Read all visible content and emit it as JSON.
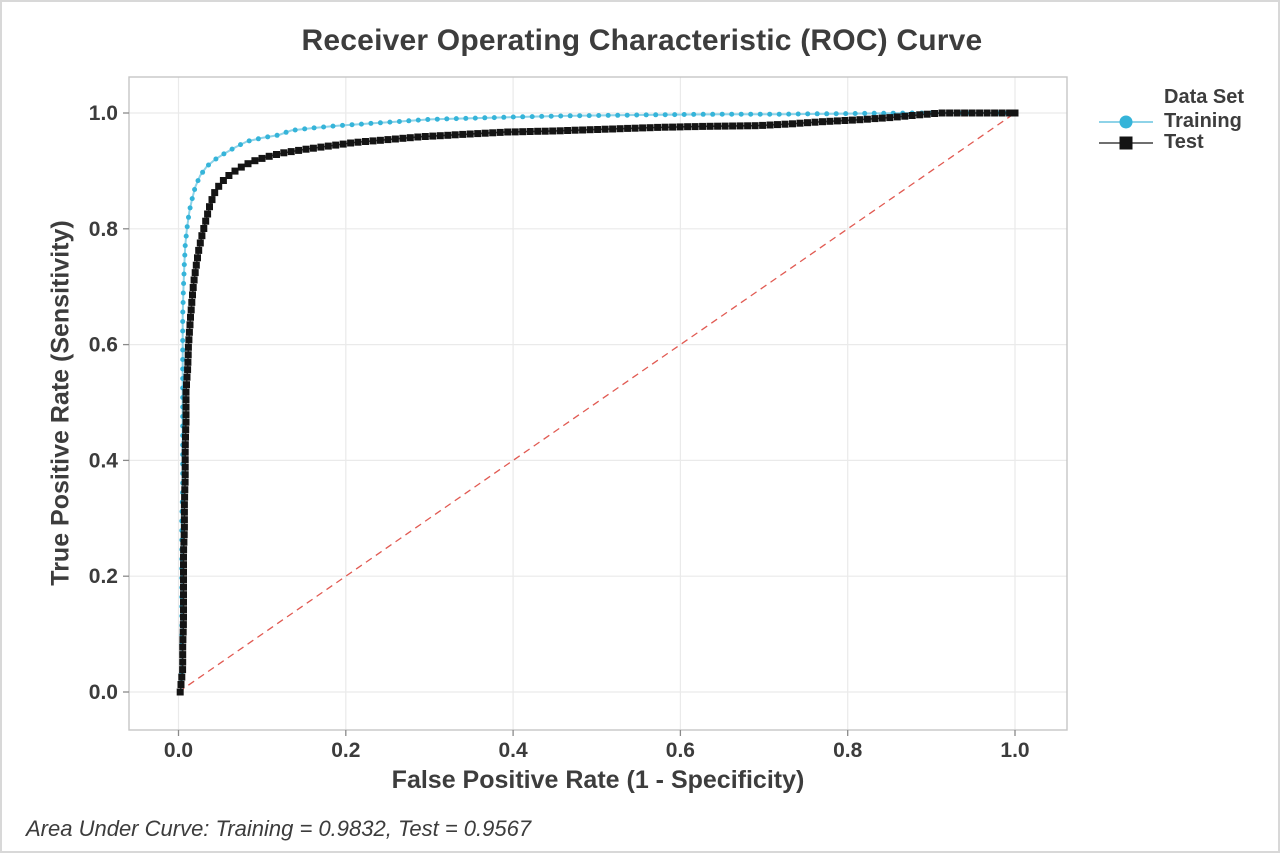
{
  "figure": {
    "background": "#ffffff",
    "border_color": "#d8d8d8"
  },
  "chart_data": {
    "type": "line",
    "title": "Receiver Operating Characteristic (ROC) Curve",
    "xlabel": "False Positive Rate (1 - Specificity)",
    "ylabel": "True Positive Rate (Sensitivity)",
    "xlim": [
      0.0,
      1.0
    ],
    "ylim": [
      0.0,
      1.0
    ],
    "xticks": [
      "0.0",
      "0.2",
      "0.4",
      "0.6",
      "0.8",
      "1.0"
    ],
    "yticks": [
      "0.0",
      "0.2",
      "0.4",
      "0.6",
      "0.8",
      "1.0"
    ],
    "grid": true,
    "colors": {
      "grid": "#eaeaea",
      "frame": "#c6c6c6",
      "tick": "#8a8a8a",
      "tick_text": "#3c3c3c",
      "diagonal": "#e15a52"
    },
    "legend": {
      "title": "Data Set",
      "position": "top-right",
      "entries": [
        {
          "label": "Training",
          "marker": "circle",
          "marker_color": "#35b4d9",
          "line_color": "#8ed3e8"
        },
        {
          "label": "Test",
          "marker": "square",
          "marker_color": "#141414",
          "line_color": "#6f6f6f"
        }
      ]
    },
    "diagonal_reference": {
      "from": [
        0,
        0
      ],
      "to": [
        1,
        1
      ],
      "style": "dashed",
      "color": "#e15a52"
    },
    "series": [
      {
        "name": "Training",
        "marker": "circle",
        "marker_color": "#35b4d9",
        "line_color": "#8ed3e8",
        "auc": 0.9832,
        "points": [
          [
            0.003,
            0.0
          ],
          [
            0.004,
            0.05
          ],
          [
            0.004,
            0.1
          ],
          [
            0.004,
            0.15
          ],
          [
            0.004,
            0.2
          ],
          [
            0.004,
            0.25
          ],
          [
            0.004,
            0.3
          ],
          [
            0.005,
            0.35
          ],
          [
            0.005,
            0.4
          ],
          [
            0.005,
            0.45
          ],
          [
            0.005,
            0.5
          ],
          [
            0.005,
            0.55
          ],
          [
            0.005,
            0.6
          ],
          [
            0.005,
            0.65
          ],
          [
            0.006,
            0.7
          ],
          [
            0.007,
            0.74
          ],
          [
            0.008,
            0.77
          ],
          [
            0.01,
            0.8
          ],
          [
            0.013,
            0.83
          ],
          [
            0.016,
            0.85
          ],
          [
            0.02,
            0.872
          ],
          [
            0.026,
            0.892
          ],
          [
            0.034,
            0.908
          ],
          [
            0.044,
            0.92
          ],
          [
            0.055,
            0.93
          ],
          [
            0.068,
            0.941
          ],
          [
            0.082,
            0.951
          ],
          [
            0.1,
            0.957
          ],
          [
            0.12,
            0.962
          ],
          [
            0.135,
            0.97
          ],
          [
            0.16,
            0.974
          ],
          [
            0.19,
            0.978
          ],
          [
            0.22,
            0.981
          ],
          [
            0.26,
            0.985
          ],
          [
            0.3,
            0.989
          ],
          [
            0.35,
            0.991
          ],
          [
            0.4,
            0.993
          ],
          [
            0.46,
            0.995
          ],
          [
            0.52,
            0.996
          ],
          [
            0.58,
            0.997
          ],
          [
            0.65,
            0.998
          ],
          [
            0.72,
            0.998
          ],
          [
            0.8,
            0.999
          ],
          [
            0.88,
            1.0
          ],
          [
            1.0,
            1.0
          ]
        ]
      },
      {
        "name": "Test",
        "marker": "square",
        "marker_color": "#141414",
        "line_color": "#3a3a3a",
        "auc": 0.9567,
        "points": [
          [
            0.002,
            0.0
          ],
          [
            0.005,
            0.04
          ],
          [
            0.005,
            0.08
          ],
          [
            0.006,
            0.12
          ],
          [
            0.006,
            0.16
          ],
          [
            0.006,
            0.2
          ],
          [
            0.006,
            0.24
          ],
          [
            0.007,
            0.28
          ],
          [
            0.007,
            0.32
          ],
          [
            0.008,
            0.37
          ],
          [
            0.008,
            0.42
          ],
          [
            0.009,
            0.47
          ],
          [
            0.009,
            0.52
          ],
          [
            0.011,
            0.56
          ],
          [
            0.012,
            0.6
          ],
          [
            0.014,
            0.64
          ],
          [
            0.016,
            0.675
          ],
          [
            0.018,
            0.705
          ],
          [
            0.021,
            0.735
          ],
          [
            0.024,
            0.762
          ],
          [
            0.028,
            0.788
          ],
          [
            0.032,
            0.81
          ],
          [
            0.037,
            0.838
          ],
          [
            0.043,
            0.862
          ],
          [
            0.051,
            0.88
          ],
          [
            0.061,
            0.893
          ],
          [
            0.073,
            0.905
          ],
          [
            0.088,
            0.916
          ],
          [
            0.105,
            0.924
          ],
          [
            0.125,
            0.931
          ],
          [
            0.15,
            0.937
          ],
          [
            0.18,
            0.943
          ],
          [
            0.21,
            0.949
          ],
          [
            0.25,
            0.954
          ],
          [
            0.29,
            0.959
          ],
          [
            0.34,
            0.963
          ],
          [
            0.39,
            0.967
          ],
          [
            0.45,
            0.969
          ],
          [
            0.51,
            0.972
          ],
          [
            0.57,
            0.975
          ],
          [
            0.63,
            0.977
          ],
          [
            0.69,
            0.978
          ],
          [
            0.73,
            0.981
          ],
          [
            0.77,
            0.985
          ],
          [
            0.81,
            0.988
          ],
          [
            0.85,
            0.992
          ],
          [
            0.88,
            0.996
          ],
          [
            0.91,
            1.0
          ],
          [
            1.0,
            1.0
          ]
        ]
      }
    ],
    "footnote": "Area Under Curve: Training = 0.9832, Test = 0.9567"
  }
}
